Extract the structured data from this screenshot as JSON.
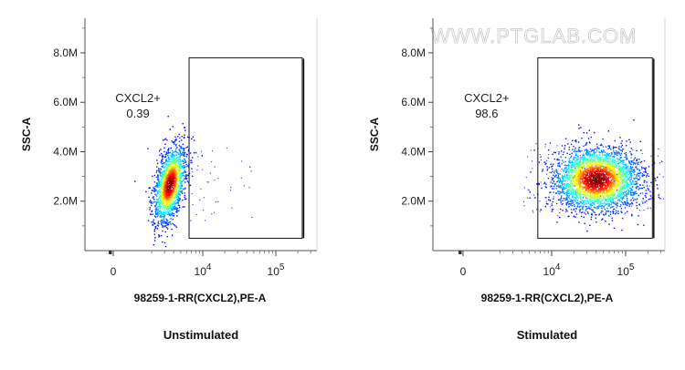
{
  "watermark": "WWW.PTGLAB.COM",
  "chart_data": [
    {
      "type": "scatter",
      "plot_kind": "flow-cytometry-density",
      "caption": "Unstimulated",
      "xlabel": "98259-1-RR(CXCL2),PE-A",
      "ylabel": "SSC-A",
      "x_scale": "biexponential",
      "x_ticks": [
        {
          "value": 0,
          "base": "0",
          "exp": ""
        },
        {
          "value": 10000,
          "base": "10",
          "exp": "4"
        },
        {
          "value": 100000,
          "base": "10",
          "exp": "5"
        }
      ],
      "y_ticks": [
        "2.0M",
        "4.0M",
        "6.0M",
        "8.0M"
      ],
      "ylim": [
        0,
        9400000
      ],
      "gate": {
        "name": "CXCL2+",
        "value": "0.39",
        "x_range": [
          6500,
          230000
        ],
        "y_range": [
          500000,
          7800000
        ]
      },
      "population": {
        "center_x": 3500,
        "center_y": 2700000,
        "spread": "narrow, tilted upward"
      }
    },
    {
      "type": "scatter",
      "plot_kind": "flow-cytometry-density",
      "caption": "Stimulated",
      "xlabel": "98259-1-RR(CXCL2),PE-A",
      "ylabel": "SSC-A",
      "x_scale": "biexponential",
      "x_ticks": [
        {
          "value": 0,
          "base": "0",
          "exp": ""
        },
        {
          "value": 10000,
          "base": "10",
          "exp": "4"
        },
        {
          "value": 100000,
          "base": "10",
          "exp": "5"
        }
      ],
      "y_ticks": [
        "2.0M",
        "4.0M",
        "6.0M",
        "8.0M"
      ],
      "ylim": [
        0,
        9400000
      ],
      "gate": {
        "name": "CXCL2+",
        "value": "98.6",
        "x_range": [
          6500,
          230000
        ],
        "y_range": [
          500000,
          7800000
        ]
      },
      "population": {
        "center_x": 40000,
        "center_y": 2900000,
        "spread": "broad"
      }
    }
  ]
}
